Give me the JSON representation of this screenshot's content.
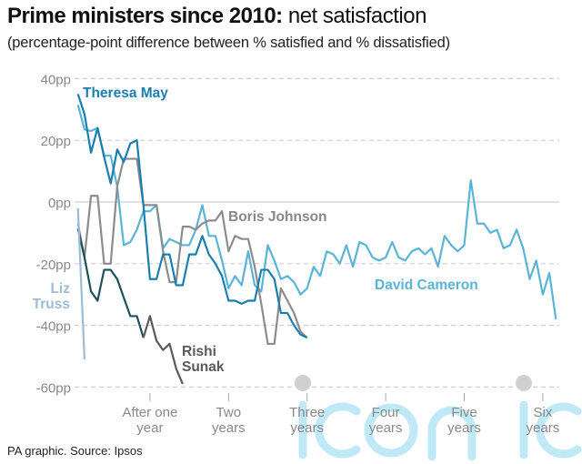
{
  "title_bold": "Prime ministers since 2010:",
  "title_regular": " net satisfaction",
  "subtitle": "(percentage-point difference between % satisfied and % dissatisfied)",
  "footer": "PA graphic. Source: Ipsos",
  "watermark": "iconic",
  "chart_data": {
    "type": "line",
    "xlabel": "",
    "ylabel": "",
    "x_unit": "months in office",
    "xlim": [
      0,
      76
    ],
    "ylim": [
      -60,
      40
    ],
    "yticks": [
      40,
      20,
      0,
      -20,
      -40,
      -60
    ],
    "ytick_labels": [
      "40pp",
      "20pp",
      "0pp",
      "-20pp",
      "-40pp",
      "-60pp"
    ],
    "xticks": [
      12,
      24,
      36,
      48,
      60,
      72
    ],
    "xtick_labels": [
      [
        "After one",
        "year"
      ],
      [
        "Two",
        "years"
      ],
      [
        "Three",
        "years"
      ],
      [
        "Four",
        "years"
      ],
      [
        "Five",
        "years"
      ],
      [
        "Six",
        "years"
      ]
    ],
    "grid": "horizontal dashed, solid zero line",
    "series": [
      {
        "name": "David Cameron",
        "color": "#5ab4d6",
        "label_lines": [
          "David Cameron"
        ],
        "values": [
          31.5,
          23.5,
          23,
          24,
          15,
          15,
          5,
          -14,
          -13,
          -9,
          -3,
          -3,
          -1,
          -15,
          -12,
          -13,
          -14,
          -14,
          -9,
          -1,
          -11,
          -11,
          -19,
          -28,
          -24,
          -27,
          -16,
          -27,
          -29,
          -14,
          -19,
          -25,
          -24,
          -26,
          -30,
          -28,
          -21,
          -24,
          -16,
          -17,
          -20,
          -14,
          -21,
          -13,
          -14,
          -18,
          -19,
          -18,
          -13,
          -18,
          -19,
          -16,
          -15,
          -17,
          -15,
          -21,
          -11,
          -14,
          -16,
          -14,
          7,
          -7,
          -7,
          -10,
          -9,
          -15,
          -14,
          -9,
          -15,
          -25,
          -19,
          -30,
          -23,
          -38
        ]
      },
      {
        "name": "Boris Johnson",
        "color": "#8c8c8c",
        "label_lines": [
          "Boris Johnson"
        ],
        "values": [
          -7,
          -18,
          2,
          2,
          -20,
          -20,
          5,
          14,
          14,
          14,
          -1,
          -1,
          -1,
          -16,
          -26,
          -26,
          -8,
          -8,
          -9,
          -7,
          -6,
          -6,
          -3,
          -16,
          -11,
          -12,
          -12,
          -21,
          -33,
          -46,
          -46,
          -28,
          -32,
          -36,
          -42,
          -44
        ]
      },
      {
        "name": "Theresa May",
        "color": "#1a7fb0",
        "label_lines": [
          "Theresa May"
        ],
        "values": [
          35,
          28.5,
          16,
          24,
          14.6,
          6,
          17,
          13,
          19,
          20,
          -1,
          -25,
          -25,
          -17,
          -17,
          -27,
          -27,
          -17,
          -17,
          -11,
          -17,
          -20,
          -24,
          -32,
          -32,
          -33,
          -32,
          -32,
          -22,
          -22,
          -25,
          -36,
          -36,
          -40,
          -43,
          -44
        ]
      },
      {
        "name": "Rishi Sunak",
        "color": "#1d4f5c",
        "color_later": "#5a5a5a",
        "label_lines": [
          "Rishi",
          "Sunak"
        ],
        "values": [
          -8.6,
          -18,
          -29,
          -32,
          -22,
          -22,
          -25,
          -31,
          -37,
          -37,
          -44,
          -37,
          -45,
          -48,
          -46,
          -54,
          -59
        ]
      },
      {
        "name": "Liz Truss",
        "color": "#9dbbd6",
        "label_lines": [
          "Liz",
          "Truss"
        ],
        "values": [
          -2,
          -51
        ]
      }
    ]
  }
}
